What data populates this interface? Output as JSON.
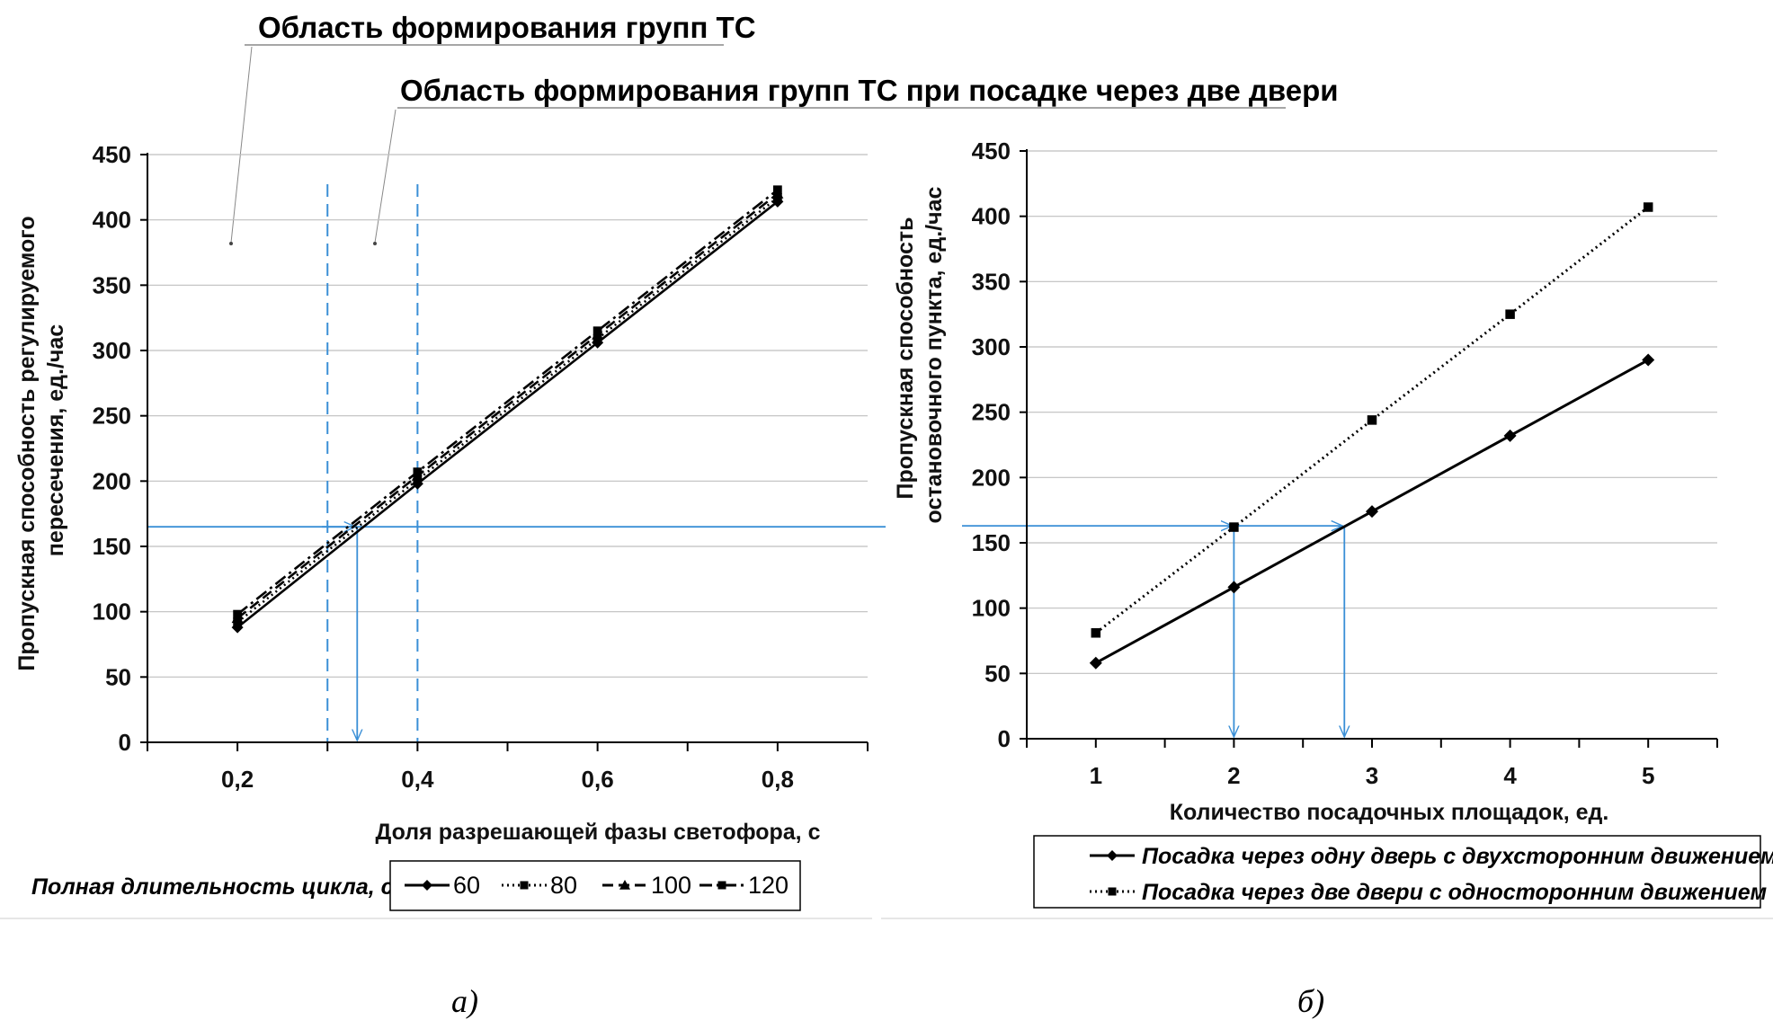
{
  "annotations": {
    "top1": "Область формирования групп ТС",
    "top2": "Область формирования групп ТС при посадке через две двери"
  },
  "panels": {
    "a": "а)",
    "b": "б)"
  },
  "chart_data": [
    {
      "type": "line",
      "xlabel": "Доля разрешающей фазы светофора, с",
      "ylabel": "Пропускная способность регулируемого пересечения, ед./час",
      "xlim": [
        0.1,
        0.9
      ],
      "ylim": [
        0,
        450
      ],
      "xticks": [
        {
          "v": 0.2,
          "label": "0,2"
        },
        {
          "v": 0.4,
          "label": "0,4"
        },
        {
          "v": 0.6,
          "label": "0,6"
        },
        {
          "v": 0.8,
          "label": "0,8"
        }
      ],
      "yticks": [
        0,
        50,
        100,
        150,
        200,
        250,
        300,
        350,
        400,
        450
      ],
      "grid": true,
      "legend_title": "Полная длительность цикла, с",
      "legend_position": "bottom",
      "series": [
        {
          "name": "60",
          "x": [
            0.2,
            0.4,
            0.6,
            0.8
          ],
          "y": [
            88,
            198,
            306,
            414
          ],
          "style": "solid",
          "marker": "diamond"
        },
        {
          "name": "80",
          "x": [
            0.2,
            0.4,
            0.6,
            0.8
          ],
          "y": [
            92,
            201,
            309,
            417
          ],
          "style": "dotted",
          "marker": "square"
        },
        {
          "name": "100",
          "x": [
            0.2,
            0.4,
            0.6,
            0.8
          ],
          "y": [
            95,
            204,
            312,
            420
          ],
          "style": "dashed",
          "marker": "triangle"
        },
        {
          "name": "120",
          "x": [
            0.2,
            0.4,
            0.6,
            0.8
          ],
          "y": [
            98,
            207,
            315,
            423
          ],
          "style": "dashdot",
          "marker": "square"
        }
      ],
      "reference": {
        "y": 165,
        "x_arrow": 0.333,
        "v_dashed": [
          0.3,
          0.4
        ]
      }
    },
    {
      "type": "line",
      "xlabel": "Количество посадочных площадок, ед.",
      "ylabel": "Пропускная способность остановочного пункта, ед./час",
      "xlim": [
        0.5,
        5.5
      ],
      "ylim": [
        0,
        450
      ],
      "xticks": [
        {
          "v": 1,
          "label": "1"
        },
        {
          "v": 2,
          "label": "2"
        },
        {
          "v": 3,
          "label": "3"
        },
        {
          "v": 4,
          "label": "4"
        },
        {
          "v": 5,
          "label": "5"
        }
      ],
      "yticks": [
        0,
        50,
        100,
        150,
        200,
        250,
        300,
        350,
        400,
        450
      ],
      "grid": true,
      "legend_position": "bottom",
      "series": [
        {
          "name": "Посадка через одну дверь с двухсторонним движением",
          "x": [
            1,
            2,
            3,
            4,
            5
          ],
          "y": [
            58,
            116,
            174,
            232,
            290
          ],
          "style": "solid",
          "marker": "diamond"
        },
        {
          "name": "Посадка через две двери с односторонним движением",
          "x": [
            1,
            2,
            3,
            4,
            5
          ],
          "y": [
            81,
            162,
            244,
            325,
            407
          ],
          "style": "dotted",
          "marker": "square"
        }
      ],
      "reference": {
        "y": 163,
        "x_arrows": [
          2,
          2.8
        ]
      }
    }
  ]
}
